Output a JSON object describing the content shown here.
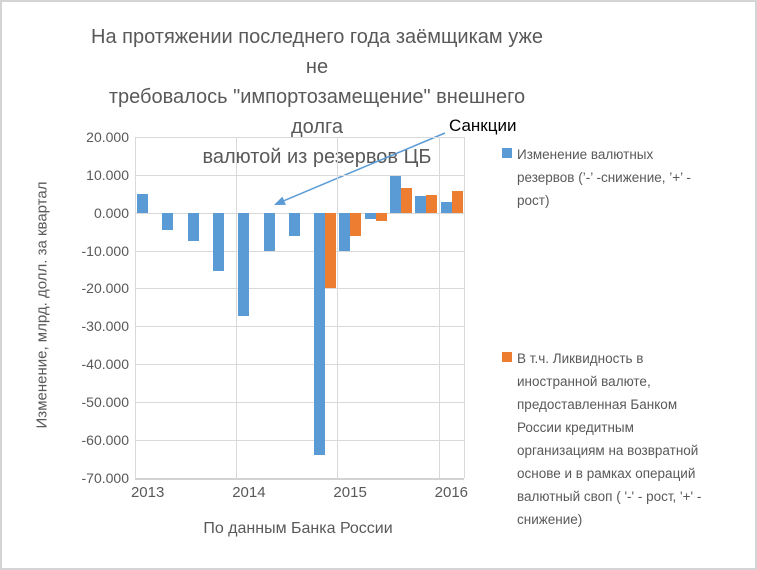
{
  "title": {
    "text": "На протяжении последнего года заёмщикам уже не требовалось \"импортозамещение\" внешнего долга валютой из резервов ЦБ",
    "lines": [
      "На протяжении последнего года заёмщикам уже не",
      "требовалось \"импортозамещение\" внешнего долга",
      "валютой из резервов ЦБ"
    ]
  },
  "annotation": {
    "text": "Санкции"
  },
  "y_axis": {
    "title": "Изменение,  млрд. долл. за квартал",
    "ticks": [
      "20.000",
      "10.000",
      "0.000",
      "-10.000",
      "-20.000",
      "-30.000",
      "-40.000",
      "-50.000",
      "-60.000",
      "-70.000"
    ]
  },
  "x_axis": {
    "ticks": [
      "2013",
      "2014",
      "2015",
      "2016"
    ],
    "caption": "По данным Банка России"
  },
  "legend": {
    "items": [
      {
        "key": "reserves",
        "color": "#5B9BD5",
        "label": "Изменение валютных резервов (’-’ -снижение, ’+’ - рост)"
      },
      {
        "key": "liquidity",
        "color": "#ED7D31",
        "label": "В т.ч. Ликвидность в иностранной валюте, предоставленная Банком России кредитным организациям на возвратной основе и в рамках операций валютный своп ( '-' - рост, '+' - снижение)"
      }
    ]
  },
  "colors": {
    "series_blue": "#5B9BD5",
    "series_orange": "#ED7D31",
    "gridline": "#d9d9d9",
    "text_gray": "#595959",
    "annotation_arrow": "#5B9BD5"
  },
  "chart_data": {
    "type": "bar",
    "title": "На протяжении последнего года заёмщикам уже не требовалось \"импортозамещение\" внешнего долга валютой из резервов ЦБ",
    "categories": [
      "2013 Q1",
      "2013 Q2",
      "2013 Q3",
      "2013 Q4",
      "2014 Q1",
      "2014 Q2",
      "2014 Q3",
      "2014 Q4",
      "2015 Q1",
      "2015 Q2",
      "2015 Q3",
      "2015 Q4",
      "2016 Q1"
    ],
    "year_labels": [
      "2013",
      "2014",
      "2015",
      "2016"
    ],
    "series": [
      {
        "key": "reserves",
        "name": "Изменение валютных резервов (’-’ -снижение, ’+’ - рост)",
        "color": "#5B9BD5",
        "values": [
          5.0,
          -4.6,
          -7.4,
          -15.3,
          -27.2,
          -10.2,
          -6.3,
          -64.0,
          -10.2,
          -1.8,
          9.8,
          4.5,
          2.8
        ]
      },
      {
        "key": "liquidity",
        "name": "В т.ч. Ликвидность в иностранной валюте, предоставленная Банком России кредитным организациям на возвратной основе и в рамках операций валютный своп ( '-' - рост, '+' - снижение)",
        "color": "#ED7D31",
        "values": [
          null,
          null,
          null,
          null,
          null,
          null,
          null,
          -19.8,
          -6.3,
          -2.3,
          6.6,
          4.8,
          5.7
        ]
      }
    ],
    "ylabel": "Изменение,  млрд. долл. за квартал",
    "xlabel": "По данным Банка России",
    "ylim": [
      -70,
      20
    ],
    "y_step": 10,
    "grid": true,
    "legend_position": "right",
    "annotation": {
      "text": "Санкции",
      "points_to_category": "2014 Q2"
    }
  }
}
